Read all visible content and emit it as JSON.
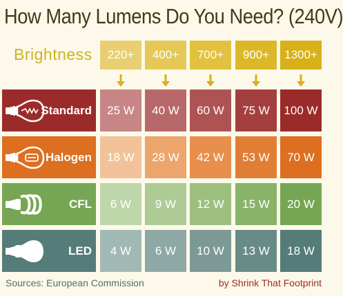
{
  "title": "How Many Lumens Do You Need? (240V)",
  "brightness_label": "Brightness",
  "lumens": [
    "220+",
    "400+",
    "700+",
    "900+",
    "1300+"
  ],
  "lumen_colors": [
    "#e9cf72",
    "#e5c858",
    "#e1c13e",
    "#dcb829",
    "#d8b018"
  ],
  "rows": [
    {
      "name": "Standard",
      "icon": "incandescent-bulb-icon",
      "label_color": "#9b2b2a",
      "cells": [
        "25 W",
        "40 W",
        "60 W",
        "75 W",
        "100 W"
      ],
      "cell_colors": [
        "#c78585",
        "#b96869",
        "#ae5354",
        "#a43f40",
        "#9b2b2a"
      ]
    },
    {
      "name": "Halogen",
      "icon": "halogen-bulb-icon",
      "label_color": "#dd6f21",
      "cells": [
        "18 W",
        "28 W",
        "42 W",
        "53 W",
        "70 W"
      ],
      "cell_colors": [
        "#f2c39a",
        "#eca56c",
        "#e88f4b",
        "#e27e33",
        "#dd6f21"
      ]
    },
    {
      "name": "CFL",
      "icon": "cfl-bulb-icon",
      "label_color": "#76a653",
      "cells": [
        "6 W",
        "9 W",
        "12 W",
        "15 W",
        "20 W"
      ],
      "cell_colors": [
        "#bdd6aa",
        "#aecb95",
        "#9cbf80",
        "#88b369",
        "#76a653"
      ]
    },
    {
      "name": "LED",
      "icon": "led-bulb-icon",
      "label_color": "#557c79",
      "cells": [
        "4 W",
        "6 W",
        "10 W",
        "13 W",
        "18 W"
      ],
      "cell_colors": [
        "#a1b9b5",
        "#8ea8a5",
        "#7d9996",
        "#698b87",
        "#557c79"
      ]
    }
  ],
  "sources": "Sources: European Commission",
  "credit": "by Shrink That Footprint"
}
